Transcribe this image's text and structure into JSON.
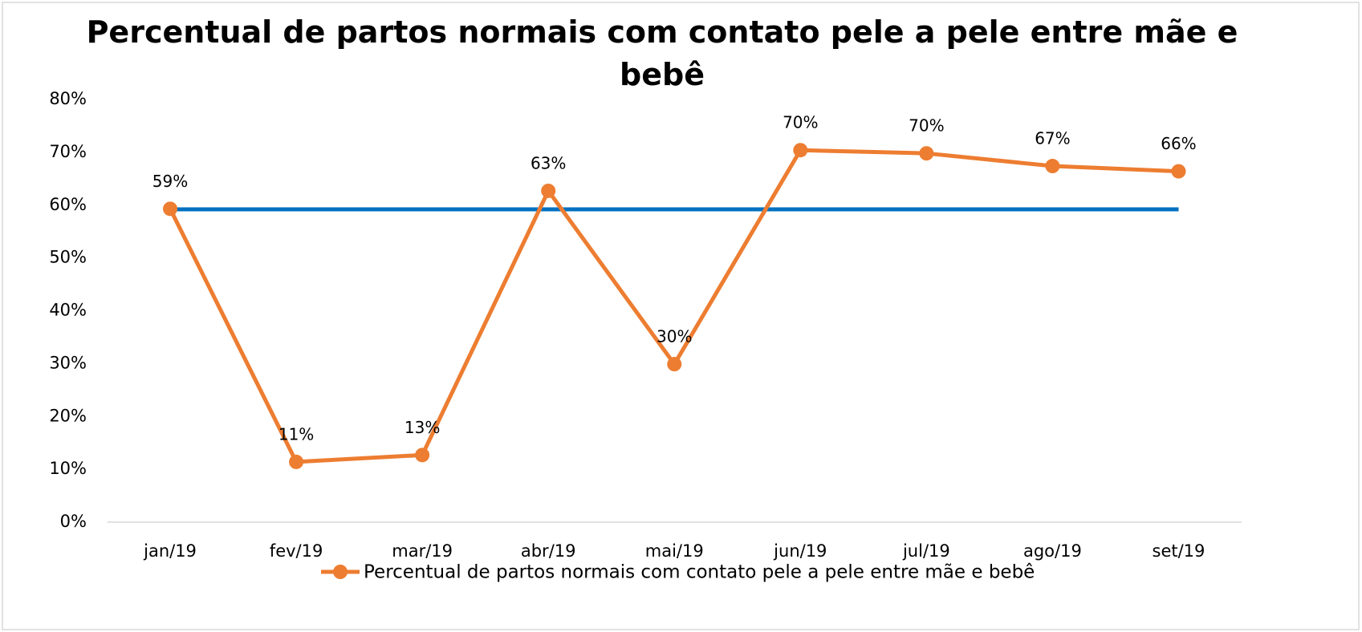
{
  "chart_data": {
    "type": "line",
    "title": "Percentual de partos normais com contato pele a pele entre mãe e bebê",
    "categories": [
      "jan/19",
      "fev/19",
      "mar/19",
      "abr/19",
      "mai/19",
      "jun/19",
      "jul/19",
      "ago/19",
      "set/19"
    ],
    "series": [
      {
        "name": "Percentual de partos normais com contato pele a pele entre mãe e bebê",
        "color": "#ed7d31",
        "values": [
          59.3,
          11.4,
          12.7,
          62.7,
          29.9,
          70.4,
          69.8,
          67.4,
          66.4
        ],
        "value_labels": [
          "59%",
          "11%",
          "13%",
          "63%",
          "30%",
          "70%",
          "70%",
          "67%",
          "66%"
        ]
      },
      {
        "color": "#0070c0",
        "values": [
          59.2,
          59.2,
          59.2,
          59.2,
          59.2,
          59.2,
          59.2,
          59.2,
          59.2
        ]
      }
    ],
    "ylim": [
      0,
      80
    ],
    "yticks": [
      {
        "value": 0,
        "label": "0%"
      },
      {
        "value": 10,
        "label": "10%"
      },
      {
        "value": 20,
        "label": "20%"
      },
      {
        "value": 30,
        "label": "30%"
      },
      {
        "value": 40,
        "label": "40%"
      },
      {
        "value": 50,
        "label": "50%"
      },
      {
        "value": 60,
        "label": "60%"
      },
      {
        "value": 70,
        "label": "70%"
      },
      {
        "value": 80,
        "label": "80%"
      }
    ],
    "legend": "bottom"
  }
}
